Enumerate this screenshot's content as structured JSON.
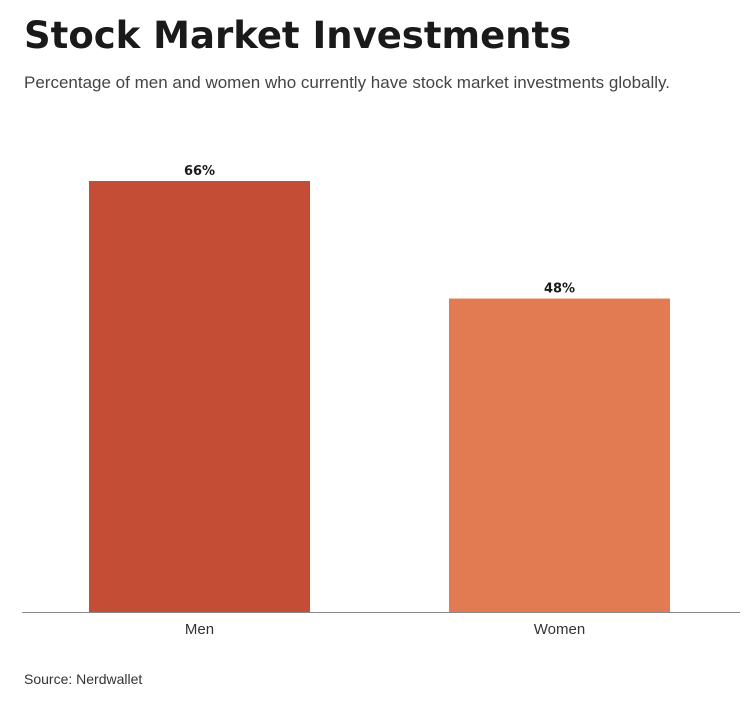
{
  "header": {
    "title": "Stock Market Investments",
    "subtitle": "Percentage of men and women who currently have stock market investments globally."
  },
  "footer": {
    "source": "Source: Nerdwallet"
  },
  "chart_data": {
    "type": "bar",
    "categories": [
      "Men",
      "Women"
    ],
    "values": [
      66,
      48
    ],
    "value_labels": [
      "66%",
      "48%"
    ],
    "colors": [
      "#c44e35",
      "#e27a52"
    ],
    "title": "Stock Market Investments",
    "xlabel": "",
    "ylabel": "",
    "ylim": [
      0,
      66
    ],
    "grid": false,
    "legend": "none"
  }
}
